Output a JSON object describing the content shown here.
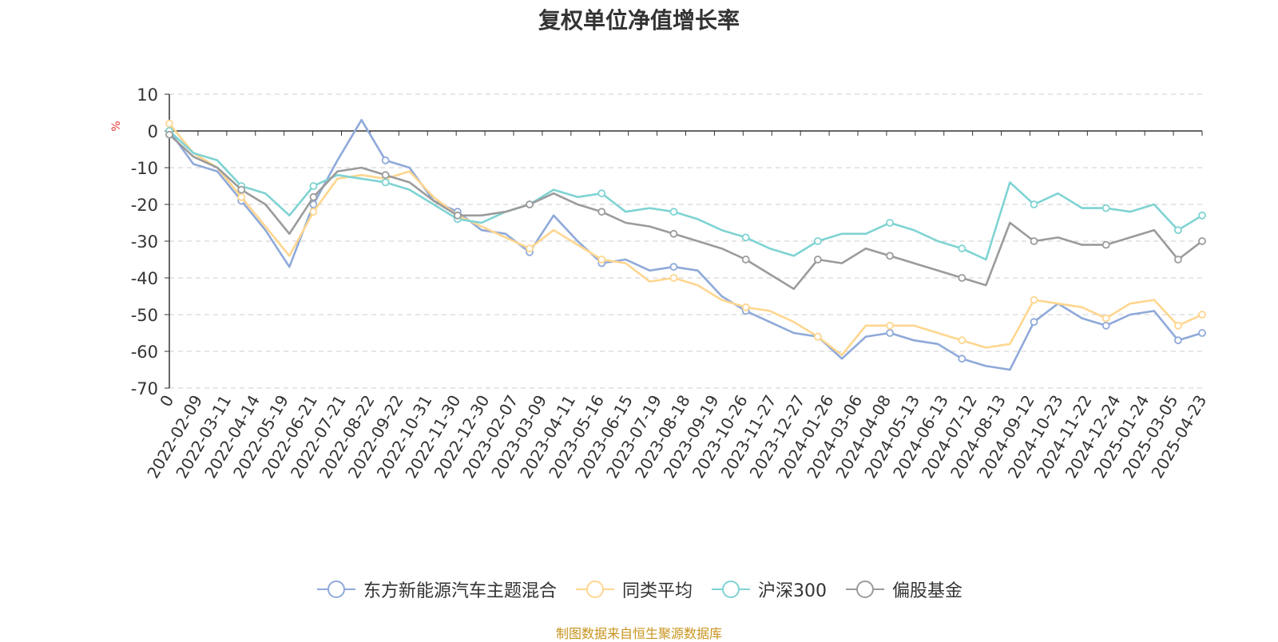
{
  "chart_data": {
    "type": "line",
    "title": "复权单位净值增长率",
    "ylabel": "%",
    "ylim": [
      -70,
      10
    ],
    "yticks": [
      10,
      0,
      -10,
      -20,
      -30,
      -40,
      -50,
      -60,
      -70
    ],
    "x_tick_labels": [
      "0",
      "2022-02-09",
      "2022-03-11",
      "2022-04-14",
      "2022-05-19",
      "2022-06-21",
      "2022-07-21",
      "2022-08-22",
      "2022-09-22",
      "2022-10-31",
      "2022-11-30",
      "2022-12-30",
      "2023-02-07",
      "2023-03-09",
      "2023-04-11",
      "2023-05-16",
      "2023-06-15",
      "2023-07-19",
      "2023-08-18",
      "2023-09-19",
      "2023-10-26",
      "2023-11-27",
      "2023-12-27",
      "2024-01-26",
      "2024-03-06",
      "2024-04-08",
      "2024-05-13",
      "2024-06-13",
      "2024-07-12",
      "2024-08-13",
      "2024-09-12",
      "2024-10-23",
      "2024-11-22",
      "2024-12-24",
      "2025-01-24",
      "2025-03-05",
      "2025-04-23"
    ],
    "grid": true,
    "legend_position": "bottom",
    "series": [
      {
        "name": "东方新能源汽车主题混合",
        "color": "#8fa9d9",
        "values": [
          0,
          -9,
          -11,
          -19,
          -27,
          -37,
          -20,
          -8,
          3,
          -8,
          -10,
          -19,
          -22,
          -27,
          -28,
          -33,
          -23,
          -30,
          -36,
          -35,
          -38,
          -37,
          -38,
          -45,
          -49,
          -52,
          -55,
          -56,
          -62,
          -56,
          -55,
          -57,
          -58,
          -62,
          -64,
          -65,
          -52,
          -47,
          -51,
          -53,
          -50,
          -49,
          -57,
          -55
        ]
      },
      {
        "name": "同类平均",
        "color": "#ffd68f",
        "values": [
          2,
          -6,
          -10,
          -18,
          -26,
          -34,
          -22,
          -13,
          -12,
          -13,
          -11,
          -18,
          -23,
          -26,
          -29,
          -32,
          -27,
          -31,
          -35,
          -36,
          -41,
          -40,
          -42,
          -46,
          -48,
          -49,
          -52,
          -56,
          -61,
          -53,
          -53,
          -53,
          -55,
          -57,
          -59,
          -58,
          -46,
          -47,
          -48,
          -51,
          -47,
          -46,
          -53,
          -50
        ]
      },
      {
        "name": "沪深300",
        "color": "#7fd3d3",
        "values": [
          0,
          -6,
          -8,
          -15,
          -17,
          -23,
          -15,
          -12,
          -13,
          -14,
          -16,
          -20,
          -24,
          -25,
          -22,
          -20,
          -16,
          -18,
          -17,
          -22,
          -21,
          -22,
          -24,
          -27,
          -29,
          -32,
          -34,
          -30,
          -28,
          -28,
          -25,
          -27,
          -30,
          -32,
          -35,
          -14,
          -20,
          -17,
          -21,
          -21,
          -22,
          -20,
          -27,
          -23
        ]
      },
      {
        "name": "偏股基金",
        "color": "#9b9b9b",
        "values": [
          -1,
          -7,
          -10,
          -16,
          -20,
          -28,
          -18,
          -11,
          -10,
          -12,
          -14,
          -19,
          -23,
          -23,
          -22,
          -20,
          -17,
          -20,
          -22,
          -25,
          -26,
          -28,
          -30,
          -32,
          -35,
          -39,
          -43,
          -35,
          -36,
          -32,
          -34,
          -36,
          -38,
          -40,
          -42,
          -25,
          -30,
          -29,
          -31,
          -31,
          -29,
          -27,
          -35,
          -30
        ]
      }
    ]
  },
  "legend_labels": [
    "东方新能源汽车主题混合",
    "同类平均",
    "沪深300",
    "偏股基金"
  ],
  "source_note": "制图数据来自恒生聚源数据库"
}
